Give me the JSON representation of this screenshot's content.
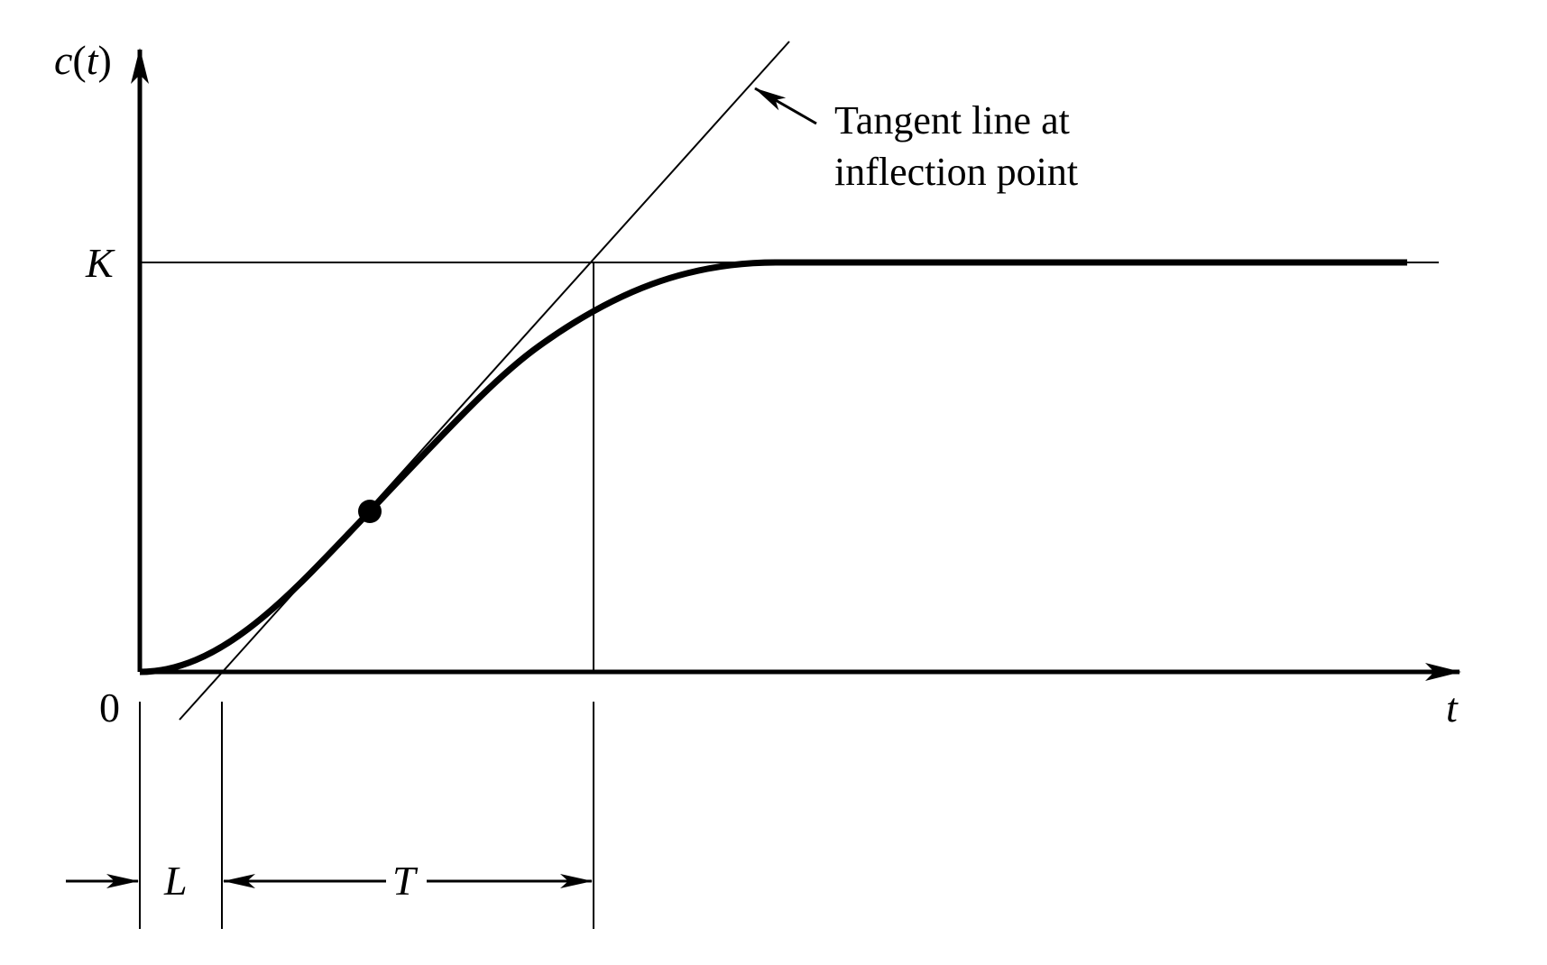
{
  "labels": {
    "y_func": "c",
    "y_paren_open": "(",
    "y_var": "t",
    "y_paren_close": ")",
    "x_axis": "t",
    "origin": "0",
    "steady_state": "K",
    "delay": "L",
    "time_constant": "T"
  },
  "annotation": {
    "line1": "Tangent line at",
    "line2": "inflection point"
  },
  "colors": {
    "ink": "#000000",
    "background": "#ffffff"
  }
}
